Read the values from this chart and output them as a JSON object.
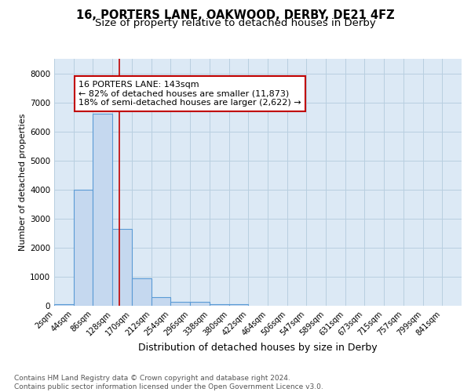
{
  "title1": "16, PORTERS LANE, OAKWOOD, DERBY, DE21 4FZ",
  "title2": "Size of property relative to detached houses in Derby",
  "xlabel": "Distribution of detached houses by size in Derby",
  "ylabel": "Number of detached properties",
  "footer": "Contains HM Land Registry data © Crown copyright and database right 2024.\nContains public sector information licensed under the Open Government Licence v3.0.",
  "annotation_line0": "16 PORTERS LANE: 143sqm",
  "annotation_line1": "← 82% of detached houses are smaller (11,873)",
  "annotation_line2": "18% of semi-detached houses are larger (2,622) →",
  "bin_edges": [
    2,
    44,
    86,
    128,
    170,
    212,
    254,
    296,
    338,
    380,
    422,
    464,
    506,
    547,
    589,
    631,
    673,
    715,
    757,
    799,
    841
  ],
  "bar_heights": [
    60,
    4000,
    6600,
    2650,
    950,
    300,
    130,
    130,
    60,
    60,
    0,
    0,
    0,
    0,
    0,
    0,
    0,
    0,
    0,
    0
  ],
  "bar_color": "#c5d8ef",
  "bar_edge_color": "#5b9bd5",
  "vline_x": 143,
  "vline_color": "#c00000",
  "annotation_box_color": "#c00000",
  "ylim": [
    0,
    8500
  ],
  "background_color": "#dce9f5",
  "grid_color": "#b8cfe0",
  "title1_fontsize": 10.5,
  "title2_fontsize": 9.5,
  "xlabel_fontsize": 9,
  "ylabel_fontsize": 8,
  "tick_fontsize": 7,
  "annotation_fontsize": 8,
  "footer_fontsize": 6.5
}
